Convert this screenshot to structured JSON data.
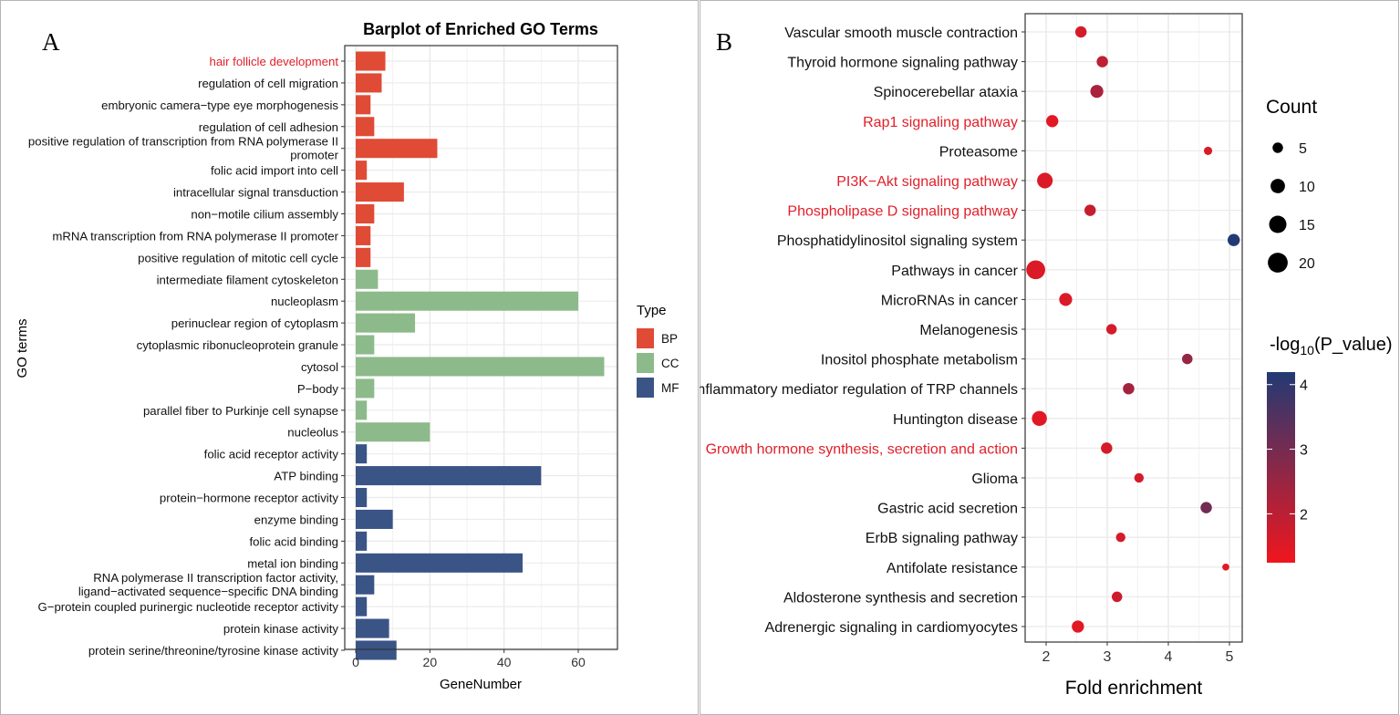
{
  "panel_a": {
    "letter": "A",
    "chart_data": {
      "type": "bar",
      "title": "Barplot of Enriched GO Terms",
      "xlabel": "GeneNumber",
      "ylabel": "GO terms",
      "xlim": [
        0,
        70
      ],
      "xticks": [
        "0",
        "20",
        "40",
        "60"
      ],
      "grid": true,
      "legend": {
        "title": "Type",
        "position": "right",
        "items": [
          {
            "label": "BP",
            "color": "#E04B36"
          },
          {
            "label": "CC",
            "color": "#8DBA8A"
          },
          {
            "label": "MF",
            "color": "#3A5486"
          }
        ]
      },
      "highlight_color": "#E0202A",
      "categories": [
        {
          "label": [
            "hair follicle development"
          ],
          "value": 8,
          "type": "BP",
          "highlight": true
        },
        {
          "label": [
            "regulation of cell migration"
          ],
          "value": 7,
          "type": "BP"
        },
        {
          "label": [
            "embryonic camera−type eye morphogenesis"
          ],
          "value": 4,
          "type": "BP"
        },
        {
          "label": [
            "regulation of cell adhesion"
          ],
          "value": 5,
          "type": "BP"
        },
        {
          "label": [
            "positive regulation of transcription from RNA polymerase II",
            "promoter"
          ],
          "value": 22,
          "type": "BP"
        },
        {
          "label": [
            "folic acid import into cell"
          ],
          "value": 3,
          "type": "BP"
        },
        {
          "label": [
            "intracellular signal transduction"
          ],
          "value": 13,
          "type": "BP"
        },
        {
          "label": [
            "non−motile cilium assembly"
          ],
          "value": 5,
          "type": "BP"
        },
        {
          "label": [
            "mRNA transcription from RNA polymerase II promoter"
          ],
          "value": 4,
          "type": "BP"
        },
        {
          "label": [
            "positive regulation of mitotic cell cycle"
          ],
          "value": 4,
          "type": "BP"
        },
        {
          "label": [
            "intermediate filament cytoskeleton"
          ],
          "value": 6,
          "type": "CC"
        },
        {
          "label": [
            "nucleoplasm"
          ],
          "value": 60,
          "type": "CC"
        },
        {
          "label": [
            "perinuclear region of cytoplasm"
          ],
          "value": 16,
          "type": "CC"
        },
        {
          "label": [
            "cytoplasmic ribonucleoprotein granule"
          ],
          "value": 5,
          "type": "CC"
        },
        {
          "label": [
            "cytosol"
          ],
          "value": 67,
          "type": "CC"
        },
        {
          "label": [
            "P−body"
          ],
          "value": 5,
          "type": "CC"
        },
        {
          "label": [
            "parallel fiber to Purkinje cell synapse"
          ],
          "value": 3,
          "type": "CC"
        },
        {
          "label": [
            "nucleolus"
          ],
          "value": 20,
          "type": "CC"
        },
        {
          "label": [
            "folic acid receptor activity"
          ],
          "value": 3,
          "type": "MF"
        },
        {
          "label": [
            "ATP binding"
          ],
          "value": 50,
          "type": "MF"
        },
        {
          "label": [
            "protein−hormone receptor activity"
          ],
          "value": 3,
          "type": "MF"
        },
        {
          "label": [
            "enzyme binding"
          ],
          "value": 10,
          "type": "MF"
        },
        {
          "label": [
            "folic acid binding"
          ],
          "value": 3,
          "type": "MF"
        },
        {
          "label": [
            "metal ion binding"
          ],
          "value": 45,
          "type": "MF"
        },
        {
          "label": [
            "RNA polymerase II transcription factor activity,",
            "ligand−activated sequence−specific DNA binding"
          ],
          "value": 5,
          "type": "MF"
        },
        {
          "label": [
            "G−protein coupled purinergic nucleotide receptor activity"
          ],
          "value": 3,
          "type": "MF"
        },
        {
          "label": [
            "protein kinase activity"
          ],
          "value": 9,
          "type": "MF"
        },
        {
          "label": [
            "protein serine/threonine/tyrosine kinase activity"
          ],
          "value": 11,
          "type": "MF"
        }
      ]
    }
  },
  "panel_b": {
    "letter": "B",
    "chart_data": {
      "type": "scatter",
      "title": "",
      "xlabel": "Fold enrichment",
      "ylabel": "",
      "xlim": [
        1.7,
        5.2
      ],
      "xticks": [
        2,
        3,
        4,
        5
      ],
      "grid": true,
      "highlight_color": "#E0202A",
      "size_legend": {
        "title": "Count",
        "position": "right",
        "values": [
          5,
          10,
          15,
          20
        ]
      },
      "color_legend": {
        "title_prefix": "-log",
        "title_sub": "10",
        "title_suffix": "(P_value)",
        "ticks": [
          2,
          3,
          4
        ],
        "range": [
          1.3,
          4.25
        ],
        "low_color": "#F0161E",
        "high_color": "#223A73"
      },
      "points": [
        {
          "label": "Vascular smooth muscle contraction",
          "x": 2.57,
          "count": 6,
          "p": 1.7
        },
        {
          "label": "Thyroid hormone signaling pathway",
          "x": 2.92,
          "count": 6,
          "p": 2.0
        },
        {
          "label": "Spinocerebellar ataxia",
          "x": 2.83,
          "count": 8,
          "p": 2.3
        },
        {
          "label": "Rap1 signaling pathway",
          "x": 2.1,
          "count": 7,
          "p": 1.5,
          "highlight": true
        },
        {
          "label": "Proteasome",
          "x": 4.65,
          "count": 3,
          "p": 1.6
        },
        {
          "label": "PI3K−Akt signaling pathway",
          "x": 1.98,
          "count": 12,
          "p": 1.6,
          "highlight": true
        },
        {
          "label": "Phospholipase D signaling pathway",
          "x": 2.72,
          "count": 6,
          "p": 1.9,
          "highlight": true
        },
        {
          "label": "Phosphatidylinositol signaling system",
          "x": 5.07,
          "count": 7,
          "p": 4.25
        },
        {
          "label": "Pathways in cancer",
          "x": 1.83,
          "count": 18,
          "p": 1.6
        },
        {
          "label": "MicroRNAs in cancer",
          "x": 2.32,
          "count": 8,
          "p": 1.6
        },
        {
          "label": "Melanogenesis",
          "x": 3.07,
          "count": 5,
          "p": 1.7
        },
        {
          "label": "Inositol phosphate metabolism",
          "x": 4.31,
          "count": 5,
          "p": 2.6
        },
        {
          "label": "Inflammatory mediator regulation of TRP channels",
          "x": 3.35,
          "count": 6,
          "p": 2.4
        },
        {
          "label": "Huntington disease",
          "x": 1.89,
          "count": 11,
          "p": 1.5
        },
        {
          "label": "Growth hormone synthesis, secretion and action",
          "x": 2.99,
          "count": 6,
          "p": 1.7,
          "highlight": true
        },
        {
          "label": "Glioma",
          "x": 3.52,
          "count": 4,
          "p": 1.7
        },
        {
          "label": "Gastric acid secretion",
          "x": 4.62,
          "count": 6,
          "p": 3.1
        },
        {
          "label": "ErbB signaling pathway",
          "x": 3.22,
          "count": 4,
          "p": 1.7
        },
        {
          "label": "Antifolate resistance",
          "x": 4.94,
          "count": 2,
          "p": 1.5
        },
        {
          "label": "Aldosterone synthesis and secretion",
          "x": 3.16,
          "count": 5,
          "p": 1.8
        },
        {
          "label": "Adrenergic signaling in cardiomyocytes",
          "x": 2.52,
          "count": 7,
          "p": 1.5
        }
      ]
    }
  }
}
